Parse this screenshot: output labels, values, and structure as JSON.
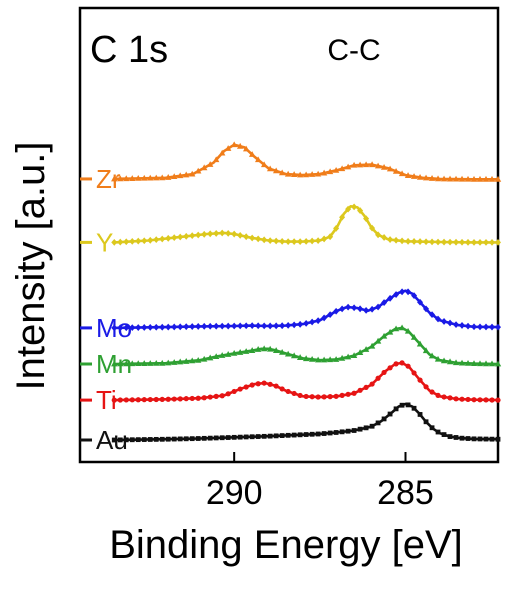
{
  "chart_data": {
    "type": "line",
    "title": "C 1s",
    "annotation": "C-C",
    "xlabel": "Binding Energy [eV]",
    "ylabel": "Intensity [a.u.]",
    "x_reversed": true,
    "xlim": [
      294.5,
      282.3
    ],
    "xticks": [
      {
        "value": 290,
        "label": "290"
      },
      {
        "value": 285,
        "label": "285"
      }
    ],
    "yticks_visible": false,
    "series": [
      {
        "name": "Zr",
        "color": "#f07d1a",
        "marker": "triangle-up",
        "offset": 6.85,
        "x": [
          293.5,
          292,
          291.2,
          290.6,
          290.3,
          290.0,
          289.7,
          289.4,
          289.0,
          288.5,
          288.0,
          287.5,
          287.0,
          286.5,
          286.0,
          285.5,
          285.0,
          284.5,
          284.0,
          283.0,
          282.3
        ],
        "y": [
          0.02,
          0.05,
          0.15,
          0.45,
          0.75,
          0.92,
          0.85,
          0.6,
          0.3,
          0.15,
          0.12,
          0.15,
          0.25,
          0.38,
          0.4,
          0.3,
          0.12,
          0.05,
          0.02,
          0.01,
          0.01
        ]
      },
      {
        "name": "Y",
        "color": "#dcc81e",
        "marker": "diamond",
        "offset": 5.2,
        "x": [
          293.5,
          292.5,
          291.5,
          290.8,
          290.3,
          290.0,
          289.5,
          289.0,
          288.5,
          288.0,
          287.5,
          287.2,
          287.0,
          286.8,
          286.6,
          286.4,
          286.2,
          286.0,
          285.8,
          285.5,
          285.0,
          284.0,
          283.0,
          282.3
        ],
        "y": [
          0.0,
          0.05,
          0.15,
          0.22,
          0.25,
          0.22,
          0.12,
          0.05,
          0.02,
          0.02,
          0.05,
          0.15,
          0.4,
          0.75,
          0.95,
          0.92,
          0.7,
          0.4,
          0.2,
          0.08,
          0.03,
          0.01,
          0.0,
          0.0
        ]
      },
      {
        "name": "Mo",
        "color": "#1a1ae6",
        "marker": "diamond",
        "offset": 2.95,
        "x": [
          293.5,
          292,
          291,
          290,
          289.5,
          289,
          288.5,
          288,
          287.5,
          287,
          286.7,
          286.4,
          286.1,
          285.8,
          285.5,
          285.2,
          285.0,
          284.8,
          284.6,
          284.3,
          284.0,
          283.5,
          283.0,
          282.3
        ],
        "y": [
          0.0,
          0.02,
          0.04,
          0.05,
          0.06,
          0.05,
          0.06,
          0.1,
          0.2,
          0.45,
          0.55,
          0.52,
          0.45,
          0.55,
          0.75,
          0.92,
          0.98,
          0.9,
          0.7,
          0.4,
          0.2,
          0.08,
          0.03,
          0.02
        ]
      },
      {
        "name": "Mn",
        "color": "#2ea032",
        "marker": "triangle-up",
        "offset": 2.0,
        "x": [
          293.5,
          292,
          291,
          290.5,
          290,
          289.5,
          289.2,
          289.0,
          288.8,
          288.5,
          288,
          287.5,
          287,
          286.5,
          286,
          285.6,
          285.3,
          285.1,
          284.9,
          284.6,
          284.3,
          284.0,
          283.5,
          283.0,
          282.3
        ],
        "y": [
          0.0,
          0.02,
          0.1,
          0.2,
          0.28,
          0.35,
          0.4,
          0.4,
          0.36,
          0.28,
          0.15,
          0.1,
          0.12,
          0.22,
          0.45,
          0.75,
          0.92,
          0.95,
          0.85,
          0.55,
          0.25,
          0.1,
          0.03,
          0.01,
          0.0
        ]
      },
      {
        "name": "Ti",
        "color": "#e61414",
        "marker": "circle",
        "offset": 1.05,
        "x": [
          293.5,
          292,
          291,
          290.3,
          289.8,
          289.4,
          289.1,
          288.8,
          288.5,
          288.0,
          287.5,
          287.0,
          286.5,
          286.0,
          285.6,
          285.3,
          285.1,
          284.9,
          284.6,
          284.3,
          284.0,
          283.5,
          283.0,
          282.3
        ],
        "y": [
          0.0,
          0.02,
          0.05,
          0.12,
          0.3,
          0.42,
          0.45,
          0.38,
          0.25,
          0.1,
          0.08,
          0.1,
          0.18,
          0.4,
          0.75,
          0.95,
          0.98,
          0.88,
          0.55,
          0.25,
          0.1,
          0.03,
          0.01,
          0.0
        ]
      },
      {
        "name": "Au",
        "color": "#111111",
        "marker": "square",
        "offset": 0.0,
        "x": [
          293.5,
          292,
          291,
          290,
          289,
          288,
          287.5,
          287,
          286.5,
          286,
          285.7,
          285.4,
          285.2,
          285.0,
          284.8,
          284.6,
          284.4,
          284.2,
          284.0,
          283.7,
          283.4,
          283.0,
          282.3
        ],
        "y": [
          0.0,
          0.02,
          0.04,
          0.07,
          0.1,
          0.14,
          0.16,
          0.2,
          0.25,
          0.35,
          0.5,
          0.72,
          0.88,
          0.95,
          0.88,
          0.7,
          0.48,
          0.3,
          0.18,
          0.09,
          0.05,
          0.03,
          0.02
        ]
      }
    ]
  }
}
